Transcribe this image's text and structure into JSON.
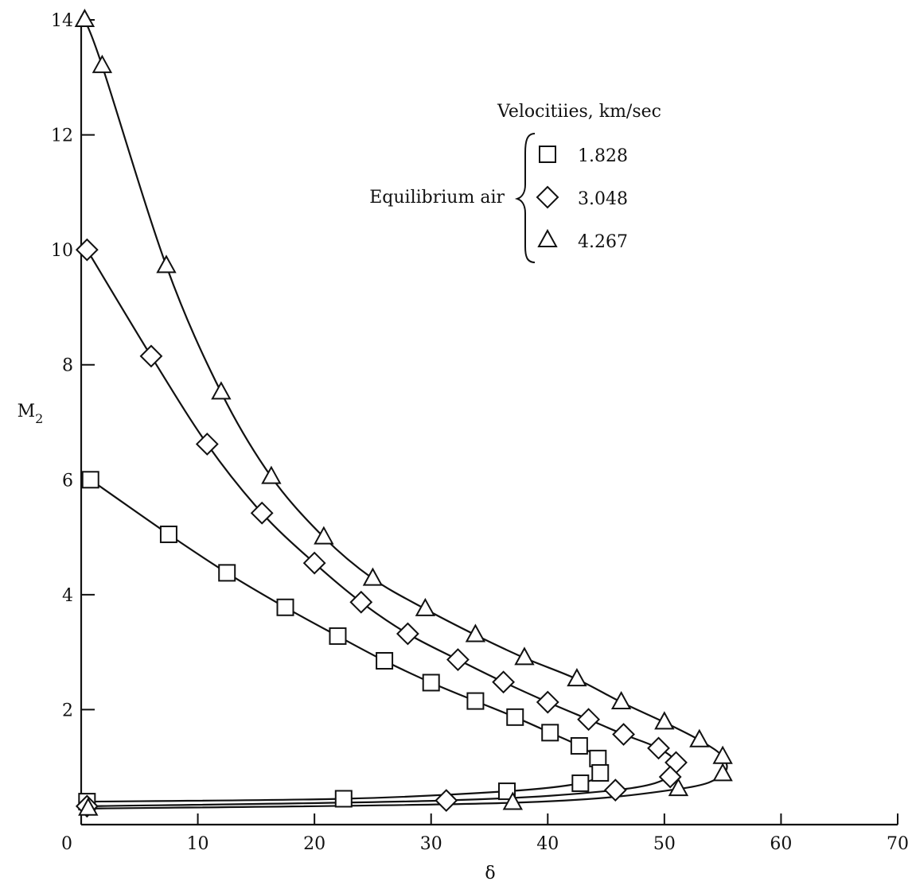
{
  "chart_data": {
    "type": "line",
    "xlabel": "δ",
    "ylabel_main": "M",
    "ylabel_sub": "2",
    "xlim": [
      0,
      70
    ],
    "ylim": [
      0,
      14
    ],
    "x_ticks": [
      0,
      10,
      20,
      30,
      40,
      50,
      60,
      70
    ],
    "y_ticks": [
      2,
      4,
      6,
      8,
      10,
      12,
      14
    ],
    "grid": false,
    "legend": {
      "title": "Velocitiies, km/sec",
      "group_label": "Equilibrium air",
      "placement": "top-right"
    },
    "series": [
      {
        "name": "1.828",
        "marker": "square",
        "points": [
          [
            0.8,
            6.0
          ],
          [
            7.5,
            5.05
          ],
          [
            12.5,
            4.38
          ],
          [
            17.5,
            3.78
          ],
          [
            22.0,
            3.28
          ],
          [
            26.0,
            2.85
          ],
          [
            30.0,
            2.47
          ],
          [
            33.8,
            2.15
          ],
          [
            37.2,
            1.87
          ],
          [
            40.2,
            1.6
          ],
          [
            42.7,
            1.37
          ],
          [
            44.3,
            1.15
          ],
          [
            44.5,
            0.9
          ],
          [
            42.8,
            0.72
          ],
          [
            36.5,
            0.58
          ],
          [
            22.5,
            0.45
          ],
          [
            0.5,
            0.4
          ]
        ]
      },
      {
        "name": "3.048",
        "marker": "diamond",
        "points": [
          [
            0.5,
            10.0
          ],
          [
            6.0,
            8.15
          ],
          [
            10.8,
            6.62
          ],
          [
            15.5,
            5.42
          ],
          [
            20.0,
            4.55
          ],
          [
            24.0,
            3.87
          ],
          [
            28.0,
            3.32
          ],
          [
            32.3,
            2.87
          ],
          [
            36.2,
            2.48
          ],
          [
            40.0,
            2.13
          ],
          [
            43.5,
            1.83
          ],
          [
            46.5,
            1.57
          ],
          [
            49.5,
            1.33
          ],
          [
            51.0,
            1.08
          ],
          [
            50.5,
            0.83
          ],
          [
            45.8,
            0.6
          ],
          [
            31.3,
            0.42
          ],
          [
            0.5,
            0.32
          ]
        ]
      },
      {
        "name": "4.267",
        "marker": "triangle",
        "points": [
          [
            0.3,
            14.0
          ],
          [
            1.8,
            13.2
          ],
          [
            7.3,
            9.72
          ],
          [
            12.0,
            7.52
          ],
          [
            16.3,
            6.05
          ],
          [
            20.8,
            5.0
          ],
          [
            25.0,
            4.28
          ],
          [
            29.5,
            3.75
          ],
          [
            33.8,
            3.3
          ],
          [
            38.0,
            2.9
          ],
          [
            42.5,
            2.53
          ],
          [
            46.3,
            2.13
          ],
          [
            50.0,
            1.78
          ],
          [
            53.0,
            1.47
          ],
          [
            55.0,
            1.18
          ],
          [
            55.0,
            0.88
          ],
          [
            51.2,
            0.62
          ],
          [
            37.0,
            0.38
          ],
          [
            0.6,
            0.28
          ]
        ]
      }
    ]
  }
}
